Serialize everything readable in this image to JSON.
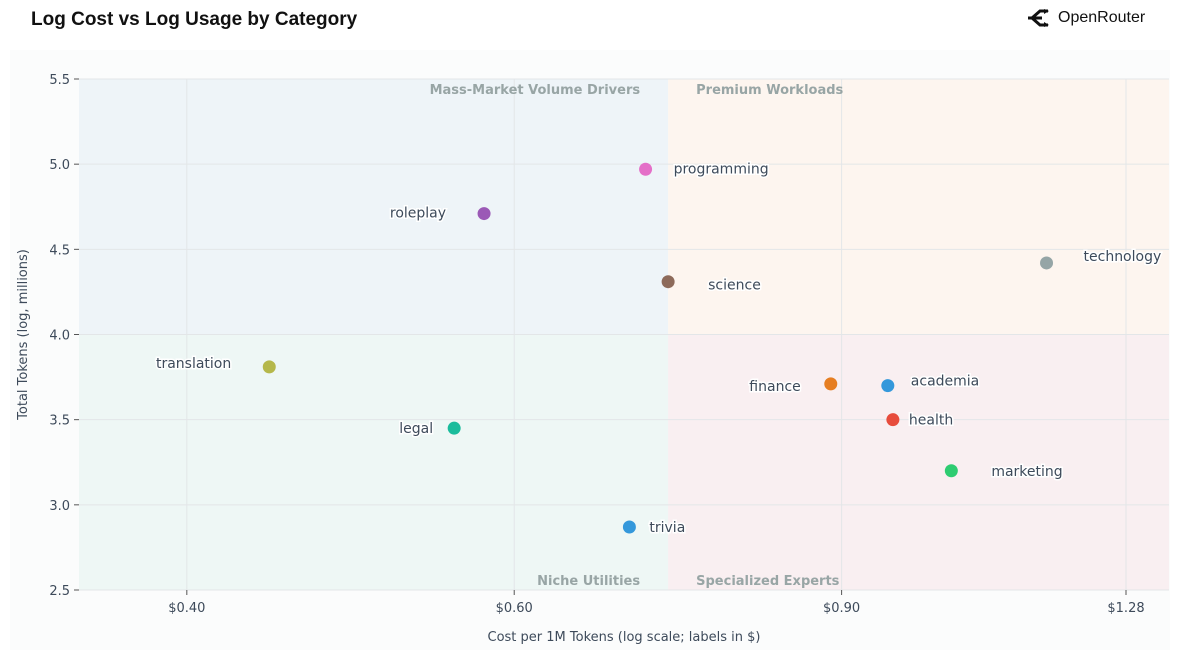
{
  "header": {
    "title": "Log Cost vs Log Usage by Category",
    "brand": "OpenRouter",
    "brand_icon": "openrouter-logo-icon"
  },
  "chart_data": {
    "type": "scatter",
    "title": "Log Cost vs Log Usage by Category",
    "xlabel": "Cost per 1M Tokens (log scale; labels in $)",
    "ylabel": "Total Tokens (log, millions)",
    "xscale": "log",
    "xlim": [
      0.35,
      1.35
    ],
    "ylim": [
      2.5,
      5.5
    ],
    "xticks": [
      {
        "value": 0.4,
        "label": "$0.40"
      },
      {
        "value": 0.6,
        "label": "$0.60"
      },
      {
        "value": 0.9,
        "label": "$0.90"
      },
      {
        "value": 1.28,
        "label": "$1.28"
      }
    ],
    "yticks": [
      {
        "value": 2.5,
        "label": "2.5"
      },
      {
        "value": 3.0,
        "label": "3.0"
      },
      {
        "value": 3.5,
        "label": "3.5"
      },
      {
        "value": 4.0,
        "label": "4.0"
      },
      {
        "value": 4.5,
        "label": "4.5"
      },
      {
        "value": 5.0,
        "label": "5.0"
      },
      {
        "value": 5.5,
        "label": "5.5"
      }
    ],
    "grid": true,
    "quadrant_split": {
      "x": 0.726,
      "y": 4.0
    },
    "quadrants": [
      {
        "label": "Mass-Market Volume Drivers",
        "position": "top-left",
        "color": "#eef4f8"
      },
      {
        "label": "Premium Workloads",
        "position": "top-right",
        "color": "#fdf5ef"
      },
      {
        "label": "Niche Utilities",
        "position": "bottom-left",
        "color": "#eef7f5"
      },
      {
        "label": "Specialized Experts",
        "position": "bottom-right",
        "color": "#f9eff1"
      }
    ],
    "points": [
      {
        "name": "programming",
        "x": 0.706,
        "y": 4.97,
        "color": "#e46fc8"
      },
      {
        "name": "roleplay",
        "x": 0.578,
        "y": 4.71,
        "color": "#9b59b6"
      },
      {
        "name": "science",
        "x": 0.726,
        "y": 4.31,
        "color": "#8d6a5a"
      },
      {
        "name": "technology",
        "x": 1.16,
        "y": 4.42,
        "color": "#95a5a6"
      },
      {
        "name": "translation",
        "x": 0.443,
        "y": 3.81,
        "color": "#b5b84a"
      },
      {
        "name": "legal",
        "x": 0.557,
        "y": 3.45,
        "color": "#1abc9c"
      },
      {
        "name": "trivia",
        "x": 0.692,
        "y": 2.87,
        "color": "#3498db"
      },
      {
        "name": "finance",
        "x": 0.888,
        "y": 3.71,
        "color": "#e67e22"
      },
      {
        "name": "academia",
        "x": 0.953,
        "y": 3.7,
        "color": "#3498db"
      },
      {
        "name": "health",
        "x": 0.959,
        "y": 3.5,
        "color": "#e74c3c"
      },
      {
        "name": "marketing",
        "x": 1.031,
        "y": 3.2,
        "color": "#2ecc71"
      }
    ]
  }
}
